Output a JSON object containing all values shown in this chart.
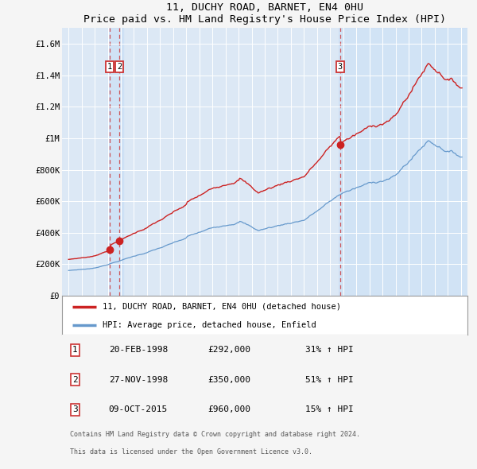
{
  "title": "11, DUCHY ROAD, BARNET, EN4 0HU",
  "subtitle": "Price paid vs. HM Land Registry's House Price Index (HPI)",
  "ylim": [
    0,
    1700000
  ],
  "yticks": [
    0,
    200000,
    400000,
    600000,
    800000,
    1000000,
    1200000,
    1400000,
    1600000
  ],
  "ytick_labels": [
    "£0",
    "£200K",
    "£400K",
    "£600K",
    "£800K",
    "£1M",
    "£1.2M",
    "£1.4M",
    "£1.6M"
  ],
  "plot_bg_color": "#dce8f5",
  "grid_color": "#ffffff",
  "hpi_line_color": "#6699cc",
  "price_line_color": "#cc2222",
  "marker_color": "#cc2222",
  "sale1_date": "20-FEB-1998",
  "sale1_price": 292000,
  "sale1_hpi_pct": "31%",
  "sale1_x": 1998.13,
  "sale2_date": "27-NOV-1998",
  "sale2_price": 350000,
  "sale2_hpi_pct": "51%",
  "sale2_x": 1998.9,
  "sale3_date": "09-OCT-2015",
  "sale3_price": 960000,
  "sale3_hpi_pct": "15%",
  "sale3_x": 2015.77,
  "legend_label1": "11, DUCHY ROAD, BARNET, EN4 0HU (detached house)",
  "legend_label2": "HPI: Average price, detached house, Enfield",
  "footer1": "Contains HM Land Registry data © Crown copyright and database right 2024.",
  "footer2": "This data is licensed under the Open Government Licence v3.0.",
  "xstart": 1995,
  "xend": 2025
}
